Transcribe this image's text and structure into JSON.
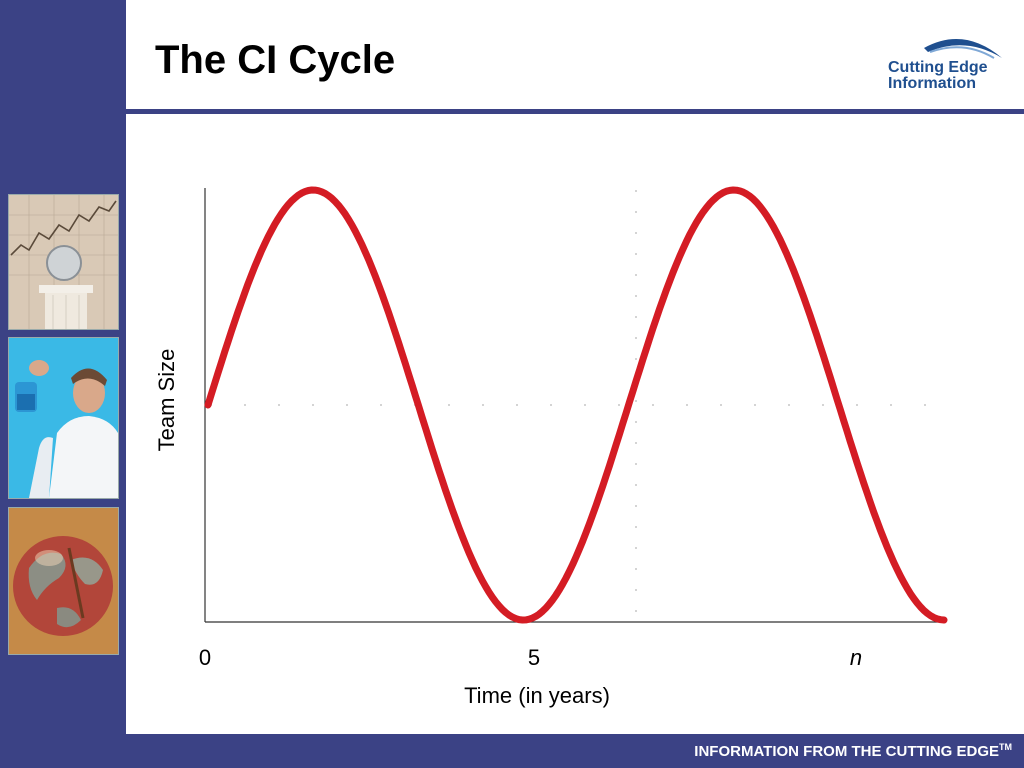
{
  "slide": {
    "title": "The CI Cycle",
    "footer_text": "INFORMATION FROM THE CUTTING EDGE",
    "footer_tm": "TM",
    "accent_color": "#3b4285"
  },
  "logo": {
    "line1": "Cutting Edge",
    "line2": "Information",
    "color": "#1f4f8f"
  },
  "images": [
    {
      "name": "stock-chart-coin-column-photo"
    },
    {
      "name": "scientist-with-beaker-photo"
    },
    {
      "name": "globe-photo"
    }
  ],
  "chart_data": {
    "type": "line",
    "title": "",
    "xlabel": "Time (in years)",
    "ylabel": "Team Size",
    "x_tick_labels": [
      "0",
      "5",
      "n"
    ],
    "series_color": "#d41c24",
    "grid": "dotted midline and vertical reference",
    "series": [
      {
        "values": [
          0.0,
          1.0,
          0.0,
          -1.0,
          0.0,
          1.0,
          0.0,
          -1.0
        ]
      }
    ]
  }
}
